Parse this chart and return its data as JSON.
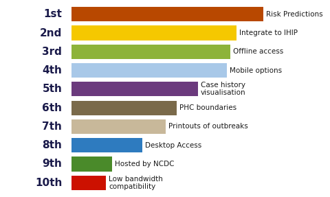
{
  "categories": [
    "1st",
    "2nd",
    "3rd",
    "4th",
    "5th",
    "6th",
    "7th",
    "8th",
    "9th",
    "10th"
  ],
  "labels": [
    "Risk Predictions",
    "Integrate to IHIP",
    "Offline access",
    "Mobile options",
    "Case history\nvisualisation",
    "PHC boundaries",
    "Printouts of outbreaks",
    "Desktop Access",
    "Hosted by NCDC",
    "Low bandwidth\ncompatibility"
  ],
  "values": [
    10,
    8.6,
    8.3,
    8.1,
    6.6,
    5.5,
    4.9,
    3.7,
    2.1,
    1.8
  ],
  "colors": [
    "#B84800",
    "#F5C800",
    "#8DB33A",
    "#A8C8E8",
    "#6B3A7D",
    "#7A6A4A",
    "#C8B89A",
    "#2E7BBF",
    "#4A8A2A",
    "#CC1100"
  ],
  "background_color": "#FFFFFF",
  "label_fontsize": 7.5,
  "rank_fontsize": 11,
  "rank_fontweight": "bold",
  "rank_color": "#1A1A4A",
  "bar_height": 0.78,
  "xlim_max": 13.5
}
